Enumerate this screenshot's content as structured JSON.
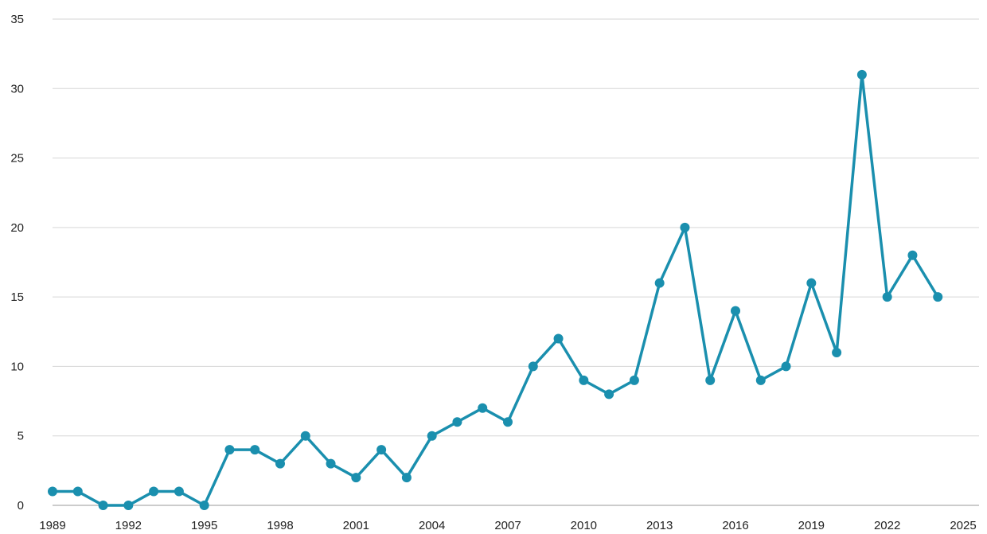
{
  "chart_data": {
    "type": "line",
    "title": "",
    "xlabel": "",
    "ylabel": "",
    "xlim": [
      1989,
      2025
    ],
    "ylim": [
      0,
      35
    ],
    "grid": true,
    "legend": "none",
    "xticks": [
      1989,
      1992,
      1995,
      1998,
      2001,
      2004,
      2007,
      2010,
      2013,
      2016,
      2019,
      2022,
      2025
    ],
    "yticks": [
      0,
      5,
      10,
      15,
      20,
      25,
      30,
      35
    ],
    "x": [
      1989,
      1990,
      1991,
      1992,
      1993,
      1994,
      1995,
      1996,
      1997,
      1998,
      1999,
      2000,
      2001,
      2002,
      2003,
      2004,
      2005,
      2006,
      2007,
      2008,
      2009,
      2010,
      2011,
      2012,
      2013,
      2014,
      2015,
      2016,
      2017,
      2018,
      2019,
      2020,
      2021,
      2022,
      2023,
      2024
    ],
    "series": [
      {
        "color": "#1a8fae",
        "values": [
          1,
          1,
          0,
          0,
          1,
          1,
          0,
          4,
          4,
          3,
          5,
          3,
          2,
          4,
          2,
          5,
          6,
          7,
          6,
          10,
          12,
          9,
          8,
          9,
          16,
          20,
          9,
          14,
          9,
          10,
          16,
          11,
          31,
          15,
          18,
          15
        ]
      }
    ]
  },
  "colors": {
    "line": "#1a8fae",
    "grid": "#d6d6d6",
    "axis": "#9a9a9a",
    "text": "#222222"
  }
}
